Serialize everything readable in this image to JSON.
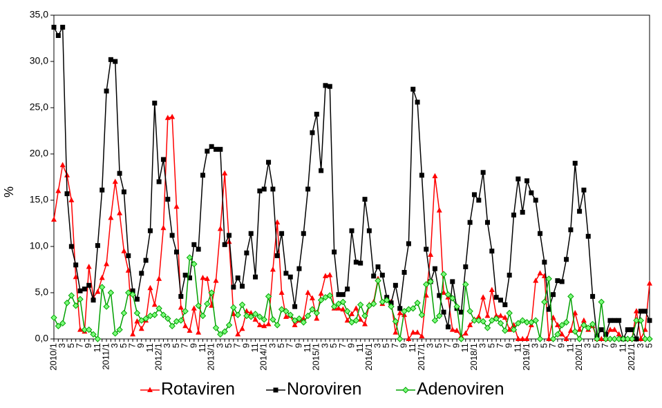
{
  "chart_data": {
    "type": "line",
    "y_label": "%",
    "categories": [
      "2010/1",
      null,
      "3",
      null,
      "5",
      null,
      "7",
      null,
      "9",
      null,
      "11",
      null,
      "2011/1",
      null,
      "3",
      null,
      "5",
      null,
      "7",
      null,
      "9",
      null,
      "11",
      null,
      "2012/1",
      null,
      "3",
      null,
      "5",
      null,
      "7",
      null,
      "9",
      null,
      "11",
      null,
      "2013/1",
      null,
      "3",
      null,
      "5",
      null,
      "7",
      null,
      "9",
      null,
      "11",
      null,
      "2014/1",
      null,
      "3",
      null,
      "5",
      null,
      "7",
      null,
      "9",
      null,
      "11",
      null,
      "2015/1",
      null,
      "3",
      null,
      "5",
      null,
      "7",
      null,
      "9",
      null,
      "11",
      null,
      "2016/1",
      null,
      "3",
      null,
      "5",
      null,
      "7",
      null,
      "9",
      null,
      "11",
      null,
      "2017/1",
      null,
      "3",
      null,
      "5",
      null,
      "7",
      null,
      "9",
      null,
      "11",
      null,
      "2018/1",
      null,
      "3",
      null,
      "5",
      null,
      "7",
      null,
      "9",
      null,
      "11",
      null,
      "2019/1",
      null,
      "3",
      null,
      "5",
      null,
      "7",
      null,
      "9",
      null,
      "11",
      null,
      "2020/1",
      null,
      "3",
      null,
      "5",
      null,
      "7",
      null,
      "9",
      null,
      "11",
      null,
      "2021/1",
      null,
      "3",
      null,
      "5"
    ],
    "series": [
      {
        "name": "Rotaviren",
        "color": "#ff0000",
        "marker": "triangle",
        "values": [
          12.9,
          16,
          18.8,
          17.7,
          15,
          6.7,
          1,
          0.8,
          7.8,
          4.5,
          5.1,
          6.6,
          8.1,
          13.1,
          17,
          13.6,
          9.5,
          7.4,
          0.5,
          1.9,
          1.1,
          2,
          5.5,
          3.7,
          6.5,
          12,
          23.9,
          24,
          14.3,
          3.4,
          1.4,
          0.9,
          3.3,
          0.7,
          6.6,
          6.5,
          3.6,
          6.3,
          11.9,
          17.9,
          10.5,
          2.7,
          0.5,
          1.1,
          3,
          2.8,
          2.1,
          1.5,
          1.4,
          1.6,
          7.5,
          12.6,
          5,
          2.4,
          2.5,
          1.5,
          2,
          2.2,
          5,
          4.4,
          2.2,
          4.9,
          6.8,
          6.9,
          3.3,
          3.3,
          3.2,
          2,
          2.7,
          3.3,
          2.1,
          1.6,
          3.7,
          4,
          6.5,
          3.8,
          4.2,
          4,
          0.7,
          2.8,
          2.6,
          0,
          0.7,
          0.7,
          0.3,
          4.7,
          9.1,
          17.6,
          13.9,
          5,
          4.5,
          1,
          0.9,
          0.3,
          0.6,
          1.5,
          2.1,
          2.4,
          4.5,
          2.5,
          5.3,
          2.5,
          2.5,
          2.3,
          1,
          1.5,
          0,
          0,
          0,
          1.5,
          6.3,
          7.1,
          6.8,
          0,
          2.3,
          1.5,
          0.5,
          0,
          0.9,
          2.8,
          1,
          2,
          1,
          1.4,
          0,
          0,
          0,
          1,
          1,
          0.5,
          0,
          0,
          0,
          3,
          0,
          1,
          6
        ]
      },
      {
        "name": "Noroviren",
        "color": "#000000",
        "marker": "square",
        "values": [
          33.7,
          32.8,
          33.7,
          15.7,
          10,
          8,
          5.2,
          5.4,
          5.8,
          4.2,
          10.1,
          16.1,
          26.8,
          30.2,
          30,
          17.9,
          15.9,
          9,
          5.2,
          4.3,
          7.1,
          8.5,
          11.7,
          25.5,
          17,
          19.4,
          15.1,
          11.2,
          9.4,
          4.6,
          6.9,
          6.6,
          10.2,
          9.7,
          17.7,
          20.3,
          20.8,
          20.5,
          20.5,
          10.2,
          11.2,
          5.6,
          6.6,
          5.7,
          9.3,
          11.4,
          6.7,
          16,
          16.2,
          19.1,
          16.2,
          9,
          11.4,
          7.1,
          6.7,
          3.5,
          7.6,
          11.4,
          16.2,
          22.3,
          24.3,
          18.2,
          27.4,
          27.3,
          9.4,
          4.8,
          4.8,
          5.4,
          11.7,
          8.3,
          8.2,
          15.1,
          11.7,
          6.8,
          7.8,
          6.9,
          4.5,
          3.9,
          5.8,
          3.3,
          7.2,
          10.3,
          27,
          25.6,
          17.7,
          9.7,
          6.2,
          7.6,
          4.7,
          2.9,
          1.3,
          6.2,
          3.3,
          2.9,
          7.8,
          12.6,
          15.6,
          15,
          18,
          12.6,
          9.5,
          4.5,
          4.2,
          3.7,
          6.9,
          13.4,
          17.3,
          13.7,
          17.1,
          15.8,
          15,
          11.4,
          8.3,
          3.2,
          4.8,
          6.3,
          6.2,
          8.6,
          11.8,
          19,
          13.8,
          16.1,
          11.1,
          4.6,
          0.3,
          1,
          0.5,
          2,
          2,
          2,
          0,
          1,
          1,
          0,
          3,
          3,
          2
        ]
      },
      {
        "name": "Adenoviren",
        "color": "#00a000",
        "marker": "diamond",
        "values": [
          2.3,
          1.4,
          1.7,
          3.9,
          4.7,
          3.6,
          4.3,
          1,
          1,
          0.5,
          0,
          5.6,
          3.5,
          5,
          0.6,
          1,
          2.8,
          5,
          4.8,
          2.8,
          2,
          2.2,
          2.5,
          2.6,
          3.3,
          2.6,
          2.2,
          1.4,
          1.9,
          2,
          3,
          8.8,
          8.1,
          3.6,
          2.5,
          3.8,
          5,
          1.2,
          0.5,
          0.8,
          1.5,
          3.4,
          2.6,
          3.7,
          2.5,
          2.4,
          2.7,
          2.4,
          2.1,
          4.6,
          2.1,
          1.5,
          3.2,
          3,
          2.6,
          2,
          2.2,
          1.8,
          2.5,
          3.2,
          2.8,
          4.2,
          4.5,
          4.7,
          3.5,
          3.8,
          4,
          3,
          1.8,
          2,
          3.7,
          2.5,
          3.6,
          3.8,
          6.3,
          4,
          4.2,
          3.5,
          1.9,
          0,
          3,
          3.2,
          3.3,
          3.9,
          2.6,
          5.9,
          6.2,
          2,
          2.5,
          7,
          4.8,
          4.4,
          3.5,
          0,
          5.9,
          3,
          2,
          2,
          1.9,
          1.2,
          2,
          2.2,
          1.7,
          0.9,
          2.8,
          1,
          1.7,
          2,
          1.8,
          1.8,
          2,
          0,
          4,
          6.5,
          0,
          0.5,
          1.5,
          1.8,
          4.6,
          0.8,
          0,
          1.5,
          1.2,
          1.6,
          0,
          4,
          0,
          0,
          0,
          0,
          0,
          0,
          0,
          2,
          2,
          0,
          0
        ]
      }
    ],
    "ylim": [
      0,
      35
    ],
    "yticks": [
      {
        "value": 0,
        "label": "0,0"
      },
      {
        "value": 5,
        "label": "5,0"
      },
      {
        "value": 10,
        "label": "10,0"
      },
      {
        "value": 15,
        "label": "15,0"
      },
      {
        "value": 20,
        "label": "20,0"
      },
      {
        "value": 25,
        "label": "25,0"
      },
      {
        "value": 30,
        "label": "30,0"
      },
      {
        "value": 35,
        "label": "35,0"
      }
    ],
    "legend": "bottom"
  }
}
